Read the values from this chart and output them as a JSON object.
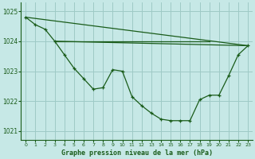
{
  "background_color": "#c6e8e6",
  "grid_color": "#9ecac6",
  "line_color": "#1a5c1a",
  "title": "Graphe pression niveau de la mer (hPa)",
  "xlim": [
    -0.5,
    23.5
  ],
  "ylim": [
    1020.7,
    1025.3
  ],
  "yticks": [
    1021,
    1022,
    1023,
    1024,
    1025
  ],
  "xtick_labels": [
    "0",
    "1",
    "2",
    "3",
    "4",
    "5",
    "6",
    "7",
    "8",
    "9",
    "10",
    "11",
    "12",
    "13",
    "14",
    "15",
    "16",
    "17",
    "18",
    "19",
    "20",
    "21",
    "22",
    "23"
  ],
  "xticks": [
    0,
    1,
    2,
    3,
    4,
    5,
    6,
    7,
    8,
    9,
    10,
    11,
    12,
    13,
    14,
    15,
    16,
    17,
    18,
    19,
    20,
    21,
    22,
    23
  ],
  "hourly_data": [
    1024.8,
    1024.55,
    1024.4,
    1024.0,
    1023.55,
    1023.1,
    1022.75,
    1022.4,
    1022.45,
    1023.05,
    1023.0,
    1022.15,
    1021.85,
    1021.6,
    1021.4,
    1021.35,
    1021.35,
    1021.35,
    1022.05,
    1022.2,
    1022.2,
    1022.85,
    1023.55,
    1023.85
  ],
  "ref_line1": [
    [
      0,
      23
    ],
    [
      1024.8,
      1023.85
    ]
  ],
  "ref_line2": [
    [
      3,
      23
    ],
    [
      1024.0,
      1023.85
    ]
  ],
  "ref_line3_flat": [
    [
      3,
      14
    ],
    [
      1024.0,
      1024.0
    ]
  ],
  "ref_line4_flat": [
    [
      14,
      19
    ],
    [
      1024.0,
      1024.0
    ]
  ]
}
